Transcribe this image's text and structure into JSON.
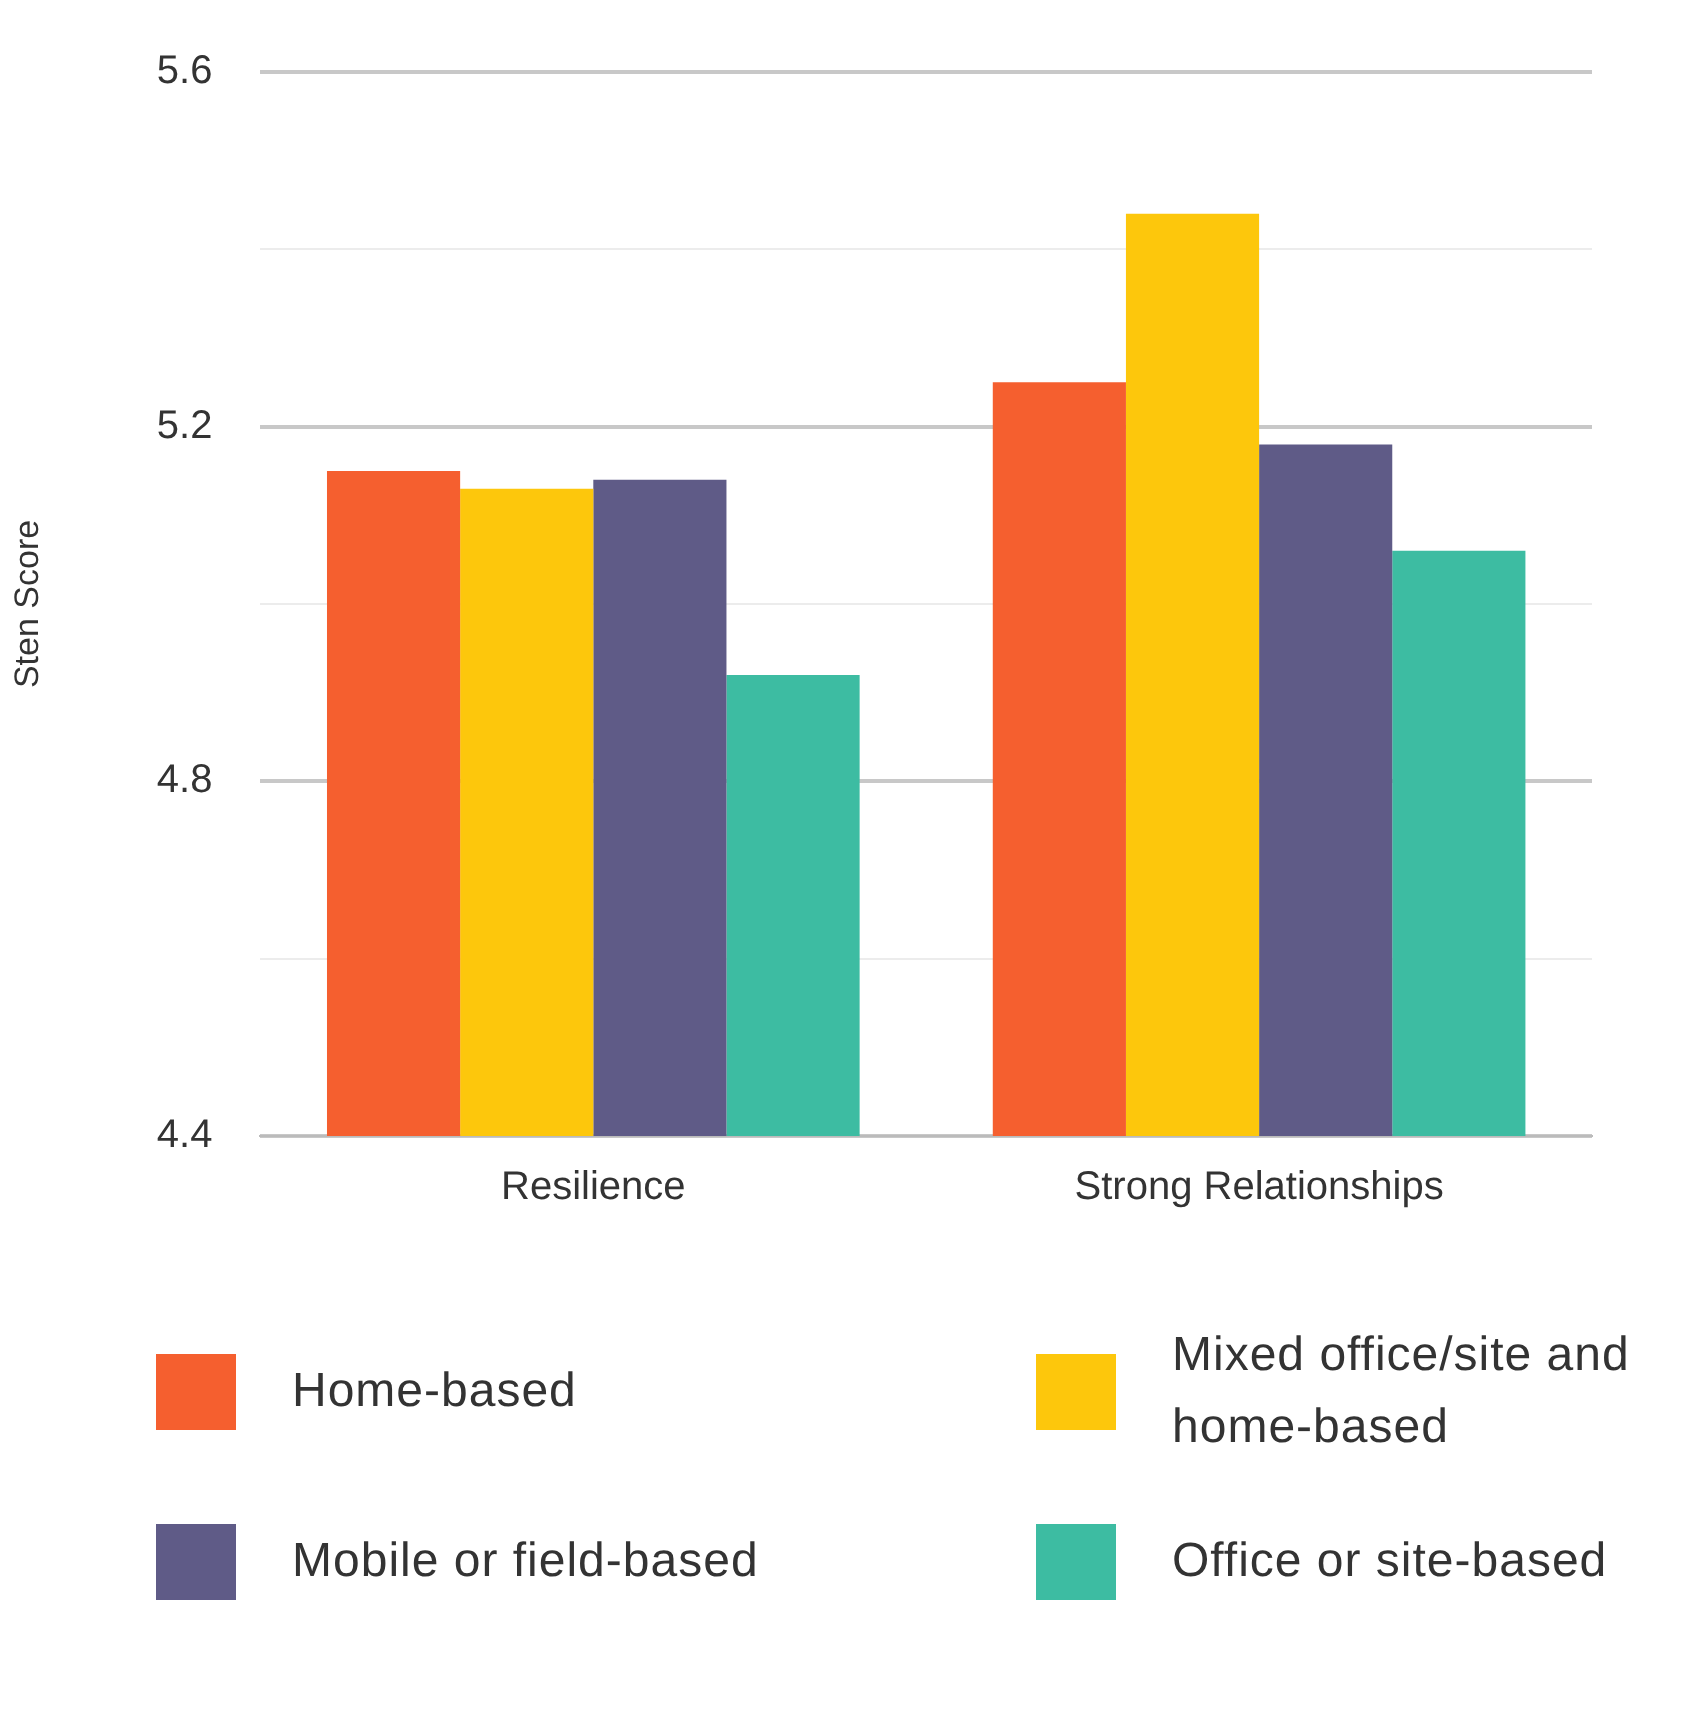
{
  "chart_data": {
    "type": "bar",
    "ylabel": "Sten Score",
    "categories": [
      "Resilience",
      "Strong Relationships"
    ],
    "series": [
      {
        "name": "Home-based",
        "color": "#f55f2f",
        "values": [
          5.15,
          5.25
        ]
      },
      {
        "name": "Mixed office/site and home-based",
        "color": "#fdc70c",
        "values": [
          5.13,
          5.44
        ]
      },
      {
        "name": "Mobile or field-based",
        "color": "#5f5b87",
        "values": [
          5.14,
          5.18
        ]
      },
      {
        "name": "Office or site-based",
        "color": "#3dbca2",
        "values": [
          4.92,
          5.06
        ]
      }
    ],
    "ylim": [
      4.4,
      5.6
    ],
    "yticks": [
      4.4,
      {
        "value": 4.6,
        "label": null
      },
      4.8,
      {
        "value": 5.0,
        "label": null
      },
      5.2,
      {
        "value": 5.4,
        "label": null
      },
      5.6
    ],
    "grid": "y",
    "legend": "bottom"
  }
}
